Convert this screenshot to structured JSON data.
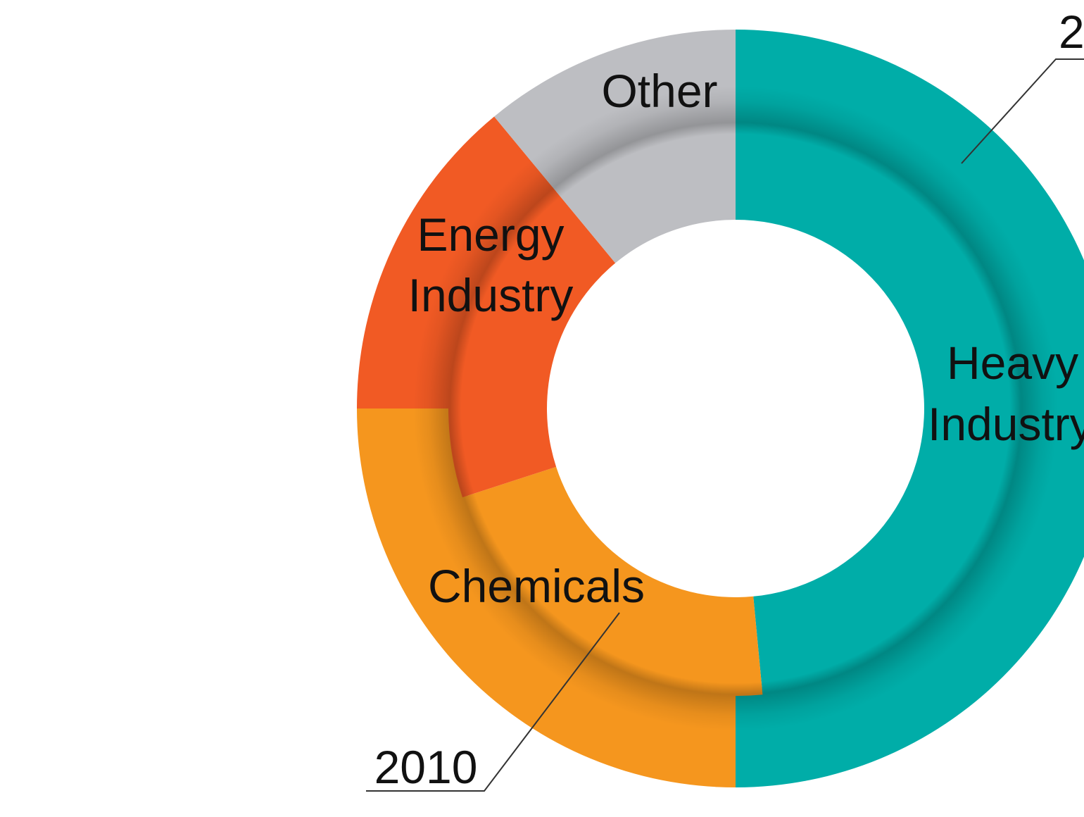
{
  "chart_data": {
    "type": "pie",
    "variant": "nested-donut",
    "categories": [
      "Heavy Industry",
      "Chemicals",
      "Energy Industry",
      "Other"
    ],
    "series": [
      {
        "name": "2010",
        "values": [
          48.5,
          21.5,
          19.0,
          11.0
        ]
      },
      {
        "name": "2",
        "values": [
          50.0,
          25.0,
          14.0,
          11.0
        ]
      }
    ],
    "colors": {
      "Heavy Industry": "#00ADA8",
      "Chemicals": "#F5961E",
      "Energy Industry": "#F15A24",
      "Other": "#BDBEC2"
    },
    "labels": {
      "heavy_line1": "Heavy",
      "heavy_line2": "Industry",
      "chemicals": "Chemicals",
      "energy_line1": "Energy",
      "energy_line2": "Industry",
      "other": "Other"
    },
    "callouts": {
      "inner_year": "2010",
      "outer_year": "2"
    }
  }
}
